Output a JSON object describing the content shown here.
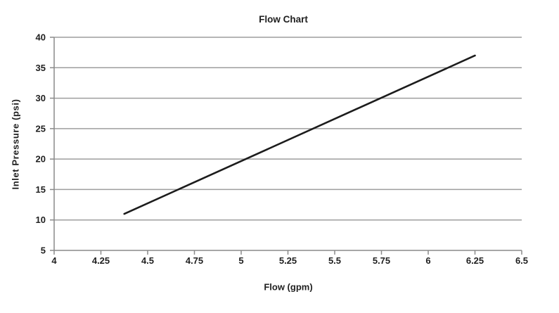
{
  "chart_data": {
    "type": "line",
    "title": "Flow Chart",
    "xlabel": "Flow (gpm)",
    "ylabel": "Inlet Pressure (psi)",
    "xlim": [
      4,
      6.5
    ],
    "ylim": [
      5,
      40
    ],
    "x_ticks": [
      4,
      4.25,
      4.5,
      4.75,
      5,
      5.25,
      5.5,
      5.75,
      6,
      6.25,
      6.5
    ],
    "y_ticks": [
      5,
      10,
      15,
      20,
      25,
      30,
      35,
      40
    ],
    "grid": "horizontal-only",
    "legend": "none",
    "series": [
      {
        "name": "inlet-pressure-line",
        "color": "#1c1c1c",
        "x": [
          4.375,
          6.25
        ],
        "y": [
          11,
          37
        ]
      }
    ],
    "colors": {
      "background": "#ffffff",
      "gridline": "#9e9e9e",
      "axis": "#8a8a8a",
      "text": "#1f1f1f"
    }
  }
}
